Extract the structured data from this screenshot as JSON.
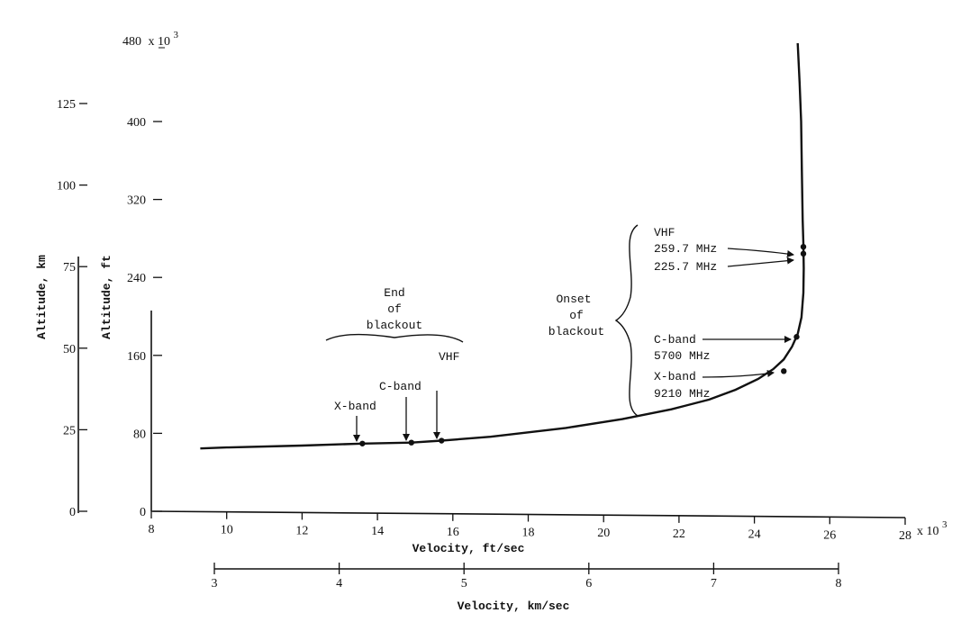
{
  "chart_data": {
    "type": "line",
    "x_axis_primary": {
      "label": "Velocity, ft/sec",
      "range": [
        8000,
        28000
      ],
      "ticks": [
        "8",
        "10",
        "12",
        "14",
        "16",
        "18",
        "20",
        "22",
        "24",
        "26",
        "28"
      ],
      "multiplier_label": "x 10",
      "multiplier_exp": "3"
    },
    "x_axis_secondary": {
      "label": "Velocity, km/sec",
      "ticks": [
        "3",
        "4",
        "5",
        "6",
        "7",
        "8"
      ]
    },
    "y_axis_primary": {
      "label": "Altitude, ft",
      "range": [
        0,
        480000
      ],
      "ticks": [
        "0",
        "80",
        "160",
        "240",
        "320",
        "400"
      ],
      "top_label": "480",
      "multiplier_label": "x 10",
      "multiplier_exp": "3"
    },
    "y_axis_secondary": {
      "label": "Altitude, km",
      "ticks": [
        "0",
        "25",
        "50",
        "75",
        "100",
        "125"
      ]
    },
    "series": [
      {
        "x": [
          9300,
          10000,
          12000,
          13600,
          14900,
          15700,
          17000,
          19000,
          20500,
          21800,
          22800,
          23500,
          24100,
          24500,
          24780,
          25000,
          25150,
          25250,
          25300,
          25310,
          25300,
          25280,
          25260,
          25240,
          25200,
          25150
        ],
        "y": [
          66000,
          67000,
          69000,
          71000,
          72000,
          74000,
          78000,
          87000,
          96000,
          106000,
          116000,
          126000,
          137000,
          147000,
          157000,
          170000,
          183000,
          200000,
          225000,
          250000,
          275000,
          300000,
          350000,
          400000,
          440000,
          480000
        ]
      }
    ],
    "markers": [
      {
        "x": 13600,
        "y": 71000
      },
      {
        "x": 14900,
        "y": 72000
      },
      {
        "x": 15700,
        "y": 74000
      },
      {
        "x": 24780,
        "y": 145000
      },
      {
        "x": 25120,
        "y": 180000
      },
      {
        "x": 25300,
        "y": 265000
      },
      {
        "x": 25300,
        "y": 272000
      }
    ],
    "annotations": {
      "end_of_blackout": [
        "End",
        "of",
        "blackout"
      ],
      "onset_of_blackout": [
        "Onset",
        "of",
        "blackout"
      ],
      "xband_end": "X-band",
      "cband_end": "C-band",
      "vhf_end": "VHF",
      "vhf_onset": "VHF",
      "vhf_259": "259.7 MHz",
      "vhf_225": "225.7 MHz",
      "cband_onset": "C-band",
      "cband_freq": "5700 MHz",
      "xband_onset": "X-band",
      "xband_freq": "9210 MHz"
    }
  }
}
